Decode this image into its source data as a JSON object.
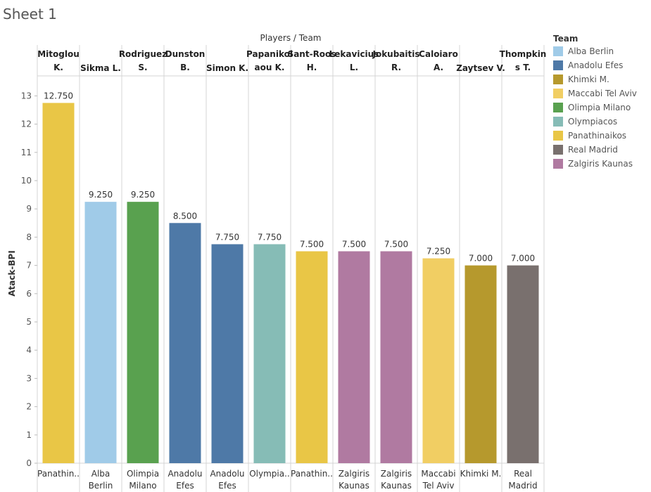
{
  "sheet": {
    "title": "Sheet 1"
  },
  "legend": {
    "title": "Team",
    "items": [
      {
        "label": "Alba Berlin",
        "color": "#a0cbe8"
      },
      {
        "label": "Anadolu Efes",
        "color": "#4e79a7"
      },
      {
        "label": "Khimki M.",
        "color": "#b6992d"
      },
      {
        "label": "Maccabi Tel Aviv",
        "color": "#f1ce63"
      },
      {
        "label": "Olimpia Milano",
        "color": "#59a14f"
      },
      {
        "label": "Olympiacos",
        "color": "#86bcb6"
      },
      {
        "label": "Panathinaikos",
        "color": "#e9c646"
      },
      {
        "label": "Real Madrid",
        "color": "#79706e"
      },
      {
        "label": "Zalgiris Kaunas",
        "color": "#b07aa1"
      }
    ]
  },
  "chart_data": {
    "type": "bar",
    "title": "",
    "column_header": "Players / Team",
    "ylabel": "Atack-BPI",
    "ylim": [
      0,
      13.75
    ],
    "yticks": [
      0,
      1,
      2,
      3,
      4,
      5,
      6,
      7,
      8,
      9,
      10,
      11,
      12,
      13
    ],
    "grid": false,
    "legend_position": "right",
    "categories": [
      {
        "player": [
          "Mitoglou",
          "K."
        ],
        "team": [
          "Panathin.."
        ],
        "team_name": "Panathinaikos",
        "value": 12.75,
        "label": "12.750"
      },
      {
        "player": [
          "Sikma L."
        ],
        "team": [
          "Alba",
          "Berlin"
        ],
        "team_name": "Alba Berlin",
        "value": 9.25,
        "label": "9.250"
      },
      {
        "player": [
          "Rodriguez",
          "S."
        ],
        "team": [
          "Olimpia",
          "Milano"
        ],
        "team_name": "Olimpia Milano",
        "value": 9.25,
        "label": "9.250"
      },
      {
        "player": [
          "Dunston",
          "B."
        ],
        "team": [
          "Anadolu",
          "Efes"
        ],
        "team_name": "Anadolu Efes",
        "value": 8.5,
        "label": "8.500"
      },
      {
        "player": [
          "Simon K."
        ],
        "team": [
          "Anadolu",
          "Efes"
        ],
        "team_name": "Anadolu Efes",
        "value": 7.75,
        "label": "7.750"
      },
      {
        "player": [
          "Papanikol",
          "aou K."
        ],
        "team": [
          "Olympia.."
        ],
        "team_name": "Olympiacos",
        "value": 7.75,
        "label": "7.750"
      },
      {
        "player": [
          "Sant-Roos",
          "H."
        ],
        "team": [
          "Panathin.."
        ],
        "team_name": "Panathinaikos",
        "value": 7.5,
        "label": "7.500"
      },
      {
        "player": [
          "Lekavicius",
          "L."
        ],
        "team": [
          "Zalgiris",
          "Kaunas"
        ],
        "team_name": "Zalgiris Kaunas",
        "value": 7.5,
        "label": "7.500"
      },
      {
        "player": [
          "Jokubaitis",
          "R."
        ],
        "team": [
          "Zalgiris",
          "Kaunas"
        ],
        "team_name": "Zalgiris Kaunas",
        "value": 7.5,
        "label": "7.500"
      },
      {
        "player": [
          "Caloiaro",
          "A."
        ],
        "team": [
          "Maccabi",
          "Tel Aviv"
        ],
        "team_name": "Maccabi Tel Aviv",
        "value": 7.25,
        "label": "7.250"
      },
      {
        "player": [
          "Zaytsev V."
        ],
        "team": [
          "Khimki M."
        ],
        "team_name": "Khimki M.",
        "value": 7.0,
        "label": "7.000"
      },
      {
        "player": [
          "Thompkin",
          "s T."
        ],
        "team": [
          "Real",
          "Madrid"
        ],
        "team_name": "Real Madrid",
        "value": 7.0,
        "label": "7.000"
      }
    ]
  }
}
